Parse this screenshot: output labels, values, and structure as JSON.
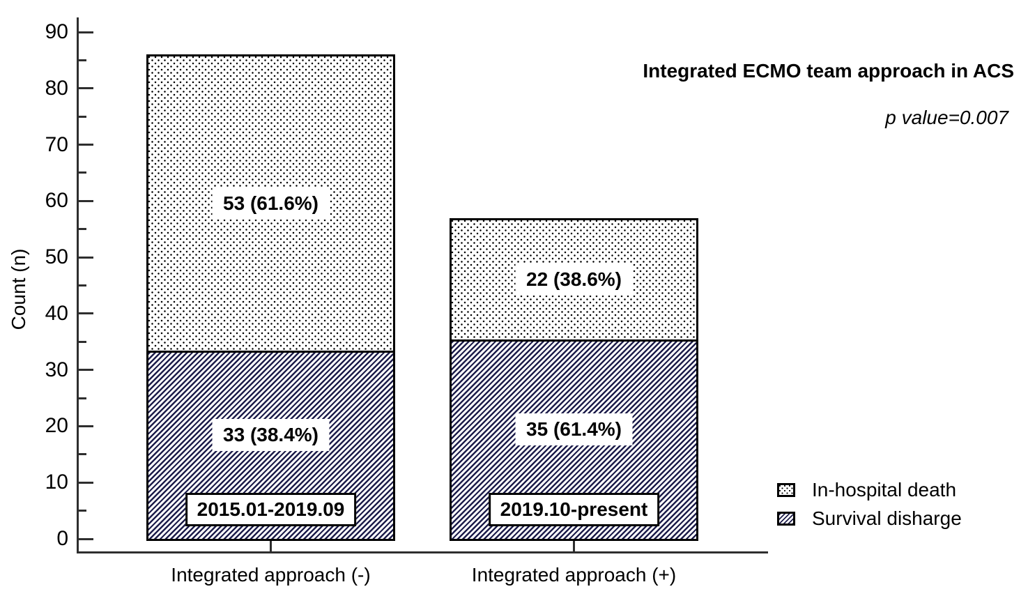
{
  "chart_data": {
    "type": "bar",
    "variant": "stacked",
    "title": "Integrated ECMO team approach in ACS",
    "annotation": "p value=0.007",
    "ylabel": "Count (n)",
    "xlabel": "",
    "ylim": [
      0,
      90
    ],
    "yticks_major": [
      0,
      10,
      20,
      30,
      40,
      50,
      60,
      70,
      80,
      90
    ],
    "yticks_minor": [
      5,
      15,
      25,
      35,
      45,
      55,
      65,
      75,
      85
    ],
    "grid": false,
    "categories": [
      "Integrated approach (-)",
      "Integrated approach (+)"
    ],
    "series": [
      {
        "name": "Survival disharge",
        "pattern": "diagonal-hatch",
        "values": [
          33,
          35
        ],
        "segment_labels": [
          "33 (38.4%)",
          "35 (61.4%)"
        ]
      },
      {
        "name": "In-hospital death",
        "pattern": "dotted",
        "values": [
          53,
          22
        ],
        "segment_labels": [
          "53 (61.6%)",
          "22 (38.6%)"
        ]
      }
    ],
    "stack_totals": [
      86,
      57
    ],
    "period_labels": [
      "2015.01-2019.09",
      "2019.10-present"
    ],
    "legend": {
      "position": "lower-right",
      "entries": [
        {
          "label": "In-hospital death",
          "pattern": "dotted"
        },
        {
          "label": "Survival disharge",
          "pattern": "diagonal-hatch"
        }
      ]
    },
    "colors": {
      "hatch_line": "#1c1c4a",
      "dot": "#000000",
      "axis_line": "#2e2e2e",
      "text": "#000000",
      "background": "#ffffff",
      "label_box_bg": "#ffffff"
    }
  }
}
